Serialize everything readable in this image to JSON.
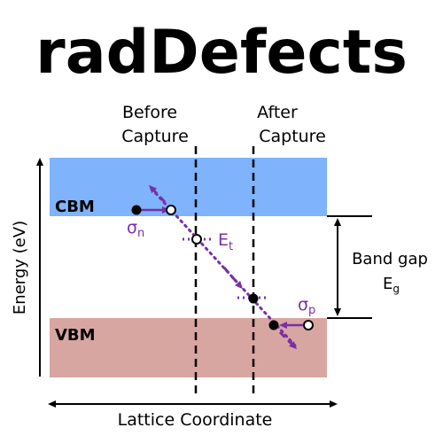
{
  "title": "radDefects",
  "labels": {
    "before_line1": "Before",
    "before_line2": "Capture",
    "after_line1": "After",
    "after_line2": "Capture",
    "cbm": "CBM",
    "vbm": "VBM",
    "y_axis": "Energy (eV)",
    "x_axis": "Lattice Coordinate",
    "band_gap": "Band gap",
    "eg_main": "E",
    "eg_sub": "g",
    "et_main": "E",
    "et_sub": "t",
    "sigma_n_main": "σ",
    "sigma_n_sub": "n",
    "sigma_p_main": "σ",
    "sigma_p_sub": "p"
  },
  "colors": {
    "conduction_band": "#7fb3fb",
    "valence_band": "#d8a6a1",
    "accent": "#7a2fa6",
    "ink": "#000000"
  }
}
